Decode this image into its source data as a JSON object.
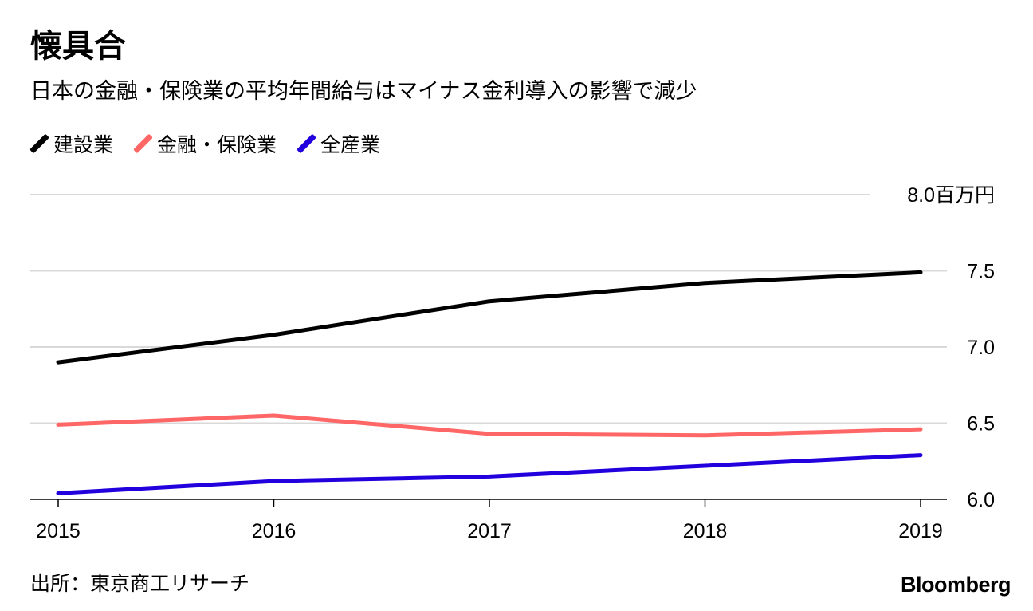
{
  "header": {
    "title": "懐具合",
    "subtitle": "日本の金融・保険業の平均年間給与はマイナス金利導入の影響で減少"
  },
  "legend": [
    {
      "label": "建設業",
      "color": "#000000"
    },
    {
      "label": "金融・保険業",
      "color": "#ff6666"
    },
    {
      "label": "全産業",
      "color": "#2200dd"
    }
  ],
  "chart_data": {
    "type": "line",
    "title": "懐具合",
    "subtitle": "日本の金融・保険業の平均年間給与はマイナス金利導入の影響で減少",
    "categories": [
      "2015",
      "2016",
      "2017",
      "2018",
      "2019"
    ],
    "series": [
      {
        "name": "建設業",
        "color": "#000000",
        "values": [
          6.9,
          7.08,
          7.3,
          7.42,
          7.49
        ]
      },
      {
        "name": "金融・保険業",
        "color": "#ff6666",
        "values": [
          6.49,
          6.55,
          6.43,
          6.42,
          6.46
        ]
      },
      {
        "name": "全産業",
        "color": "#2200dd",
        "values": [
          6.04,
          6.12,
          6.15,
          6.22,
          6.29
        ]
      }
    ],
    "ylim": [
      6.0,
      8.0
    ],
    "y_ticks": [
      {
        "value": 6.0,
        "label": "6.0"
      },
      {
        "value": 6.5,
        "label": "6.5"
      },
      {
        "value": 7.0,
        "label": "7.0"
      },
      {
        "value": 7.5,
        "label": "7.5"
      },
      {
        "value": 8.0,
        "label": "8.0百万円"
      }
    ],
    "xlabel": "",
    "ylabel": "百万円",
    "grid": true,
    "y_axis_side": "right"
  },
  "footer": {
    "source": "出所：東京商工リサーチ",
    "brand": "Bloomberg"
  }
}
